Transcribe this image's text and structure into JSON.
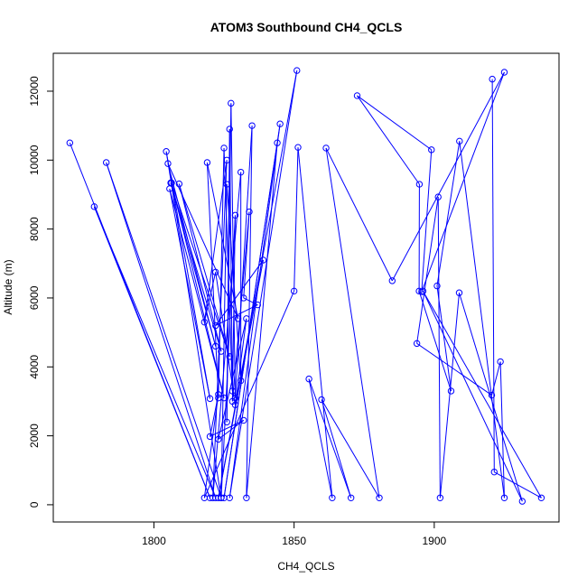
{
  "chart_data": {
    "type": "scatter",
    "title": "ATOM3 Southbound CH4_QCLS",
    "xlabel": "CH4_QCLS",
    "ylabel": "Altitude (m)",
    "xlim": [
      1764.1,
      1944.5
    ],
    "ylim": [
      -500,
      13100
    ],
    "xticks": [
      1800,
      1850,
      1900
    ],
    "yticks": [
      0,
      2000,
      4000,
      6000,
      8000,
      10000,
      12000
    ],
    "grid": false,
    "legend": "none",
    "colors": {
      "series": "#0000ff"
    },
    "series": [
      {
        "marker": "open-circle",
        "connected": true,
        "points": [
          [
            1770,
            10500
          ],
          [
            1820,
            200
          ],
          [
            1778.7,
            8650
          ],
          [
            1822,
            200
          ],
          [
            1783,
            9930
          ],
          [
            1824,
            200
          ],
          [
            1804.4,
            10250
          ],
          [
            1820,
            3080
          ],
          [
            1805.6,
            9170
          ],
          [
            1825,
            3100
          ],
          [
            1806.3,
            9340
          ],
          [
            1827,
            4300
          ],
          [
            1809,
            9310
          ],
          [
            1824,
            4450
          ],
          [
            1806,
            9340
          ],
          [
            1822,
            4600
          ],
          [
            1805,
            9900
          ],
          [
            1830,
            5400
          ],
          [
            1819,
            9930
          ],
          [
            1823,
            3100
          ],
          [
            1825,
            10350
          ],
          [
            1828,
            3300
          ],
          [
            1827,
            10900
          ],
          [
            1826,
            2400
          ],
          [
            1827.5,
            11650
          ],
          [
            1829,
            3100
          ],
          [
            1835,
            11000
          ],
          [
            1833,
            200
          ],
          [
            1844,
            10500
          ],
          [
            1825,
            200
          ],
          [
            1845,
            11050
          ],
          [
            1827,
            200
          ],
          [
            1851,
            12600
          ],
          [
            1823,
            200
          ],
          [
            1839,
            7100
          ],
          [
            1822,
            5200
          ],
          [
            1837,
            5800
          ],
          [
            1832,
            6000
          ],
          [
            1834,
            8500
          ],
          [
            1828,
            3000
          ],
          [
            1829,
            8400
          ],
          [
            1824,
            200
          ],
          [
            1826,
            9300
          ],
          [
            1831,
            3600
          ],
          [
            1831,
            9650
          ],
          [
            1821,
            200
          ],
          [
            1826,
            10000
          ],
          [
            1818,
            5300
          ],
          [
            1822,
            6750
          ],
          [
            1829,
            2900
          ],
          [
            1833,
            5400
          ],
          [
            1823,
            1900
          ],
          [
            1832,
            2450
          ],
          [
            1820,
            1980
          ],
          [
            1823,
            3200
          ],
          [
            1818,
            200
          ],
          [
            1850,
            6200
          ],
          [
            1851.4,
            10370
          ],
          [
            1863.6,
            200
          ],
          [
            1855.3,
            3650
          ],
          [
            1870.3,
            200
          ],
          [
            1859.8,
            3050
          ],
          [
            1880.4,
            200
          ],
          [
            1861.4,
            10350
          ],
          [
            1885,
            6500
          ],
          [
            1925,
            12550
          ],
          [
            1895.5,
            6180
          ],
          [
            1899,
            10300
          ],
          [
            1872.5,
            11870
          ],
          [
            1894.7,
            9300
          ],
          [
            1894.6,
            6200
          ],
          [
            1906,
            3300
          ],
          [
            1901,
            6350
          ],
          [
            1909,
            10550
          ],
          [
            1925,
            200
          ],
          [
            1923.6,
            4150
          ],
          [
            1920.5,
            3180
          ],
          [
            1893.8,
            4680
          ],
          [
            1901.4,
            8930
          ],
          [
            1902.1,
            200
          ],
          [
            1908.9,
            6150
          ],
          [
            1931.4,
            100
          ],
          [
            1896,
            6200
          ],
          [
            1938.2,
            200
          ],
          [
            1921.4,
            950
          ],
          [
            1920.7,
            12350
          ]
        ]
      }
    ]
  }
}
